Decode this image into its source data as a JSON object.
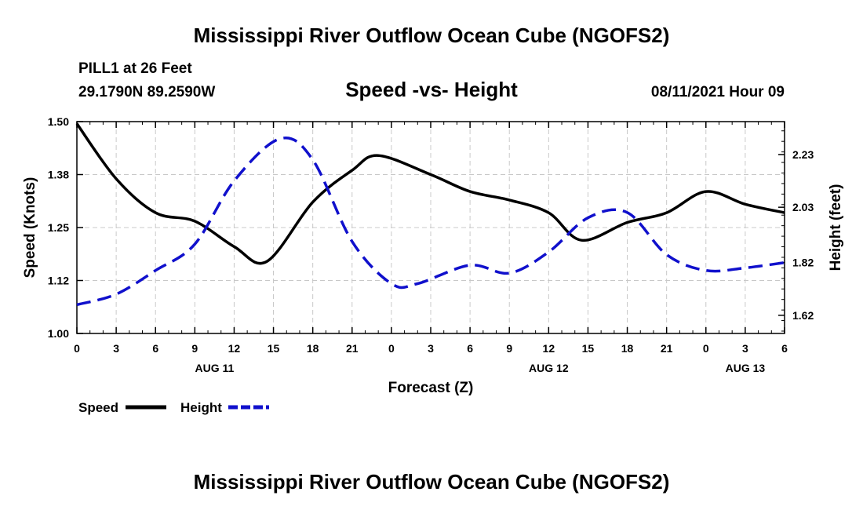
{
  "header": {
    "title": "Mississippi River Outflow Ocean Cube (NGOFS2)",
    "station": "PILL1 at 26 Feet",
    "coords": "29.1790N  89.2590W",
    "date": "08/11/2021 Hour 09",
    "footer_title": "Mississippi River Outflow Ocean Cube (NGOFS2)"
  },
  "chart_data": {
    "type": "line",
    "title": "Speed -vs- Height",
    "xlabel": "Forecast (Z)",
    "ylabel": "Speed (Knots)",
    "y2label": "Height (feet)",
    "x_range": [
      0,
      54
    ],
    "x_ticks": [
      {
        "x": 0,
        "label": "0"
      },
      {
        "x": 3,
        "label": "3"
      },
      {
        "x": 6,
        "label": "6"
      },
      {
        "x": 9,
        "label": "9"
      },
      {
        "x": 12,
        "label": "12"
      },
      {
        "x": 15,
        "label": "15"
      },
      {
        "x": 18,
        "label": "18"
      },
      {
        "x": 21,
        "label": "21"
      },
      {
        "x": 24,
        "label": "0"
      },
      {
        "x": 27,
        "label": "3"
      },
      {
        "x": 30,
        "label": "6"
      },
      {
        "x": 33,
        "label": "9"
      },
      {
        "x": 36,
        "label": "12"
      },
      {
        "x": 39,
        "label": "15"
      },
      {
        "x": 42,
        "label": "18"
      },
      {
        "x": 45,
        "label": "21"
      },
      {
        "x": 48,
        "label": "0"
      },
      {
        "x": 51,
        "label": "3"
      },
      {
        "x": 54,
        "label": "6"
      }
    ],
    "date_labels": [
      {
        "x": 10.5,
        "label": "AUG 11"
      },
      {
        "x": 36,
        "label": "AUG 12"
      },
      {
        "x": 51,
        "label": "AUG 13"
      }
    ],
    "ylim": [
      1.0,
      1.5
    ],
    "y_ticks": [
      {
        "v": 1.0,
        "label": "1.00"
      },
      {
        "v": 1.125,
        "label": "1.12"
      },
      {
        "v": 1.25,
        "label": "1.25"
      },
      {
        "v": 1.375,
        "label": "1.38"
      },
      {
        "v": 1.5,
        "label": "1.50"
      }
    ],
    "y2lim": [
      1.551,
      2.355
    ],
    "y2_ticks": [
      {
        "v": 1.62,
        "label": "1.62"
      },
      {
        "v": 1.82,
        "label": "1.82"
      },
      {
        "v": 2.03,
        "label": "2.03"
      },
      {
        "v": 2.23,
        "label": "2.23"
      }
    ],
    "series": [
      {
        "name": "Speed",
        "axis": "left",
        "color": "#000000",
        "dash": "solid",
        "x": [
          0,
          3,
          6,
          9,
          12,
          14.5,
          18,
          21,
          23,
          27,
          30,
          33,
          36,
          38.5,
          42,
          45,
          48,
          51,
          54
        ],
        "values": [
          1.495,
          1.365,
          1.285,
          1.265,
          1.205,
          1.17,
          1.31,
          1.385,
          1.42,
          1.375,
          1.335,
          1.315,
          1.285,
          1.22,
          1.262,
          1.285,
          1.335,
          1.305,
          1.285
        ]
      },
      {
        "name": "Height",
        "axis": "right",
        "color": "#1010cc",
        "dash": "dashed",
        "x": [
          0,
          3,
          6,
          9,
          12,
          15.5,
          18,
          21,
          24,
          26,
          30,
          33,
          36,
          39,
          42,
          45,
          48,
          51,
          54
        ],
        "values": [
          1.66,
          1.7,
          1.79,
          1.89,
          2.13,
          2.29,
          2.21,
          1.9,
          1.74,
          1.74,
          1.81,
          1.78,
          1.86,
          1.99,
          2.01,
          1.85,
          1.79,
          1.8,
          1.82
        ]
      }
    ],
    "legend": [
      {
        "label": "Speed",
        "color": "#000000",
        "dash": "solid"
      },
      {
        "label": "Height",
        "color": "#1010cc",
        "dash": "dashed"
      }
    ]
  }
}
